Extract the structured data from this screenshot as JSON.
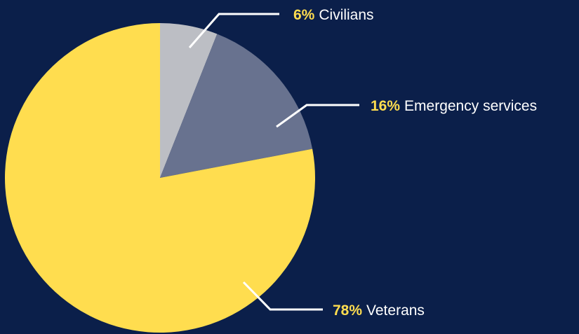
{
  "chart_data": {
    "type": "pie",
    "categories": [
      "Civilians",
      "Emergency services",
      "Veterans"
    ],
    "values": [
      6,
      16,
      78
    ],
    "value_labels": [
      "6%",
      "16%",
      "78%"
    ],
    "start_angle_deg": 0,
    "direction": "clockwise",
    "colors": [
      "#bcbec4",
      "#68728f",
      "#ffdd4f"
    ],
    "background_color": "#0b1f4a",
    "label_percent_color": "#ffdd4f",
    "label_text_color": "#ffffff",
    "leader_line_color": "#ffffff",
    "legend": "none"
  }
}
